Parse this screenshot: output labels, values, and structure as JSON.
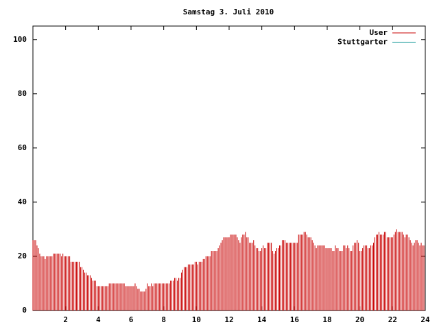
{
  "chart_data": {
    "type": "impulses",
    "title": "Samstag 3. Juli 2010",
    "xlim": [
      0,
      24
    ],
    "xticks": [
      2,
      4,
      6,
      8,
      10,
      12,
      14,
      16,
      18,
      20,
      22,
      24
    ],
    "ylim": [
      0,
      105
    ],
    "yticks": [
      0,
      20,
      40,
      60,
      80,
      100
    ],
    "legend": "top-right",
    "x": [
      0,
      0.083,
      0.167,
      0.25,
      0.333,
      0.417,
      0.5,
      0.583,
      0.667,
      0.75,
      0.833,
      0.917,
      1,
      1.083,
      1.167,
      1.25,
      1.333,
      1.417,
      1.5,
      1.583,
      1.667,
      1.75,
      1.833,
      1.917,
      2,
      2.083,
      2.167,
      2.25,
      2.333,
      2.417,
      2.5,
      2.583,
      2.667,
      2.75,
      2.833,
      2.917,
      3,
      3.083,
      3.167,
      3.25,
      3.333,
      3.417,
      3.5,
      3.583,
      3.667,
      3.75,
      3.833,
      3.917,
      4,
      4.083,
      4.167,
      4.25,
      4.333,
      4.417,
      4.5,
      4.583,
      4.667,
      4.75,
      4.833,
      4.917,
      5,
      5.083,
      5.167,
      5.25,
      5.333,
      5.417,
      5.5,
      5.583,
      5.667,
      5.75,
      5.833,
      5.917,
      6,
      6.083,
      6.167,
      6.25,
      6.333,
      6.417,
      6.5,
      6.583,
      6.667,
      6.75,
      6.833,
      6.917,
      7,
      7.083,
      7.167,
      7.25,
      7.333,
      7.417,
      7.5,
      7.583,
      7.667,
      7.75,
      7.833,
      7.917,
      8,
      8.083,
      8.167,
      8.25,
      8.333,
      8.417,
      8.5,
      8.583,
      8.667,
      8.75,
      8.833,
      8.917,
      9,
      9.083,
      9.167,
      9.25,
      9.333,
      9.417,
      9.5,
      9.583,
      9.667,
      9.75,
      9.833,
      9.917,
      10,
      10.083,
      10.167,
      10.25,
      10.333,
      10.417,
      10.5,
      10.583,
      10.667,
      10.75,
      10.833,
      10.917,
      11,
      11.083,
      11.167,
      11.25,
      11.333,
      11.417,
      11.5,
      11.583,
      11.667,
      11.75,
      11.833,
      11.917,
      12,
      12.083,
      12.167,
      12.25,
      12.333,
      12.417,
      12.5,
      12.583,
      12.667,
      12.75,
      12.833,
      12.917,
      13,
      13.083,
      13.167,
      13.25,
      13.333,
      13.417,
      13.5,
      13.583,
      13.667,
      13.75,
      13.833,
      13.917,
      14,
      14.083,
      14.167,
      14.25,
      14.333,
      14.417,
      14.5,
      14.583,
      14.667,
      14.75,
      14.833,
      14.917,
      15,
      15.083,
      15.167,
      15.25,
      15.333,
      15.417,
      15.5,
      15.583,
      15.667,
      15.75,
      15.833,
      15.917,
      16,
      16.083,
      16.167,
      16.25,
      16.333,
      16.417,
      16.5,
      16.583,
      16.667,
      16.75,
      16.833,
      16.917,
      17,
      17.083,
      17.167,
      17.25,
      17.333,
      17.417,
      17.5,
      17.583,
      17.667,
      17.75,
      17.833,
      17.917,
      18,
      18.083,
      18.167,
      18.25,
      18.333,
      18.417,
      18.5,
      18.583,
      18.667,
      18.75,
      18.833,
      18.917,
      19,
      19.083,
      19.167,
      19.25,
      19.333,
      19.417,
      19.5,
      19.583,
      19.667,
      19.75,
      19.833,
      19.917,
      20,
      20.083,
      20.167,
      20.25,
      20.333,
      20.417,
      20.5,
      20.583,
      20.667,
      20.75,
      20.833,
      20.917,
      21,
      21.083,
      21.167,
      21.25,
      21.333,
      21.417,
      21.5,
      21.583,
      21.667,
      21.75,
      21.833,
      21.917,
      22,
      22.083,
      22.167,
      22.25,
      22.333,
      22.417,
      22.5,
      22.583,
      22.667,
      22.75,
      22.833,
      22.917,
      23,
      23.083,
      23.167,
      23.25,
      23.333,
      23.417,
      23.5,
      23.583,
      23.667,
      23.75,
      23.833,
      23.917
    ],
    "series": [
      {
        "name": "User",
        "color": "#c80000",
        "values": [
          26,
          26,
          26,
          24,
          23,
          21,
          20,
          20,
          20,
          19,
          20,
          20,
          20,
          20,
          20,
          21,
          21,
          21,
          21,
          21,
          21,
          20,
          21,
          20,
          20,
          20,
          20,
          20,
          18,
          18,
          18,
          18,
          18,
          18,
          18,
          16,
          16,
          15,
          14,
          14,
          13,
          13,
          13,
          12,
          11,
          11,
          11,
          9,
          9,
          9,
          9,
          9,
          9,
          9,
          9,
          9,
          10,
          10,
          10,
          10,
          10,
          10,
          10,
          10,
          10,
          10,
          10,
          10,
          9,
          9,
          9,
          9,
          9,
          9,
          9,
          10,
          9,
          8,
          8,
          7,
          7,
          7,
          7,
          8,
          10,
          9,
          9,
          10,
          9,
          10,
          10,
          10,
          10,
          10,
          10,
          10,
          10,
          10,
          10,
          10,
          10,
          11,
          11,
          11,
          12,
          12,
          11,
          12,
          12,
          14,
          15,
          16,
          16,
          16,
          17,
          17,
          17,
          17,
          17,
          18,
          18,
          17,
          18,
          18,
          18,
          19,
          19,
          20,
          20,
          20,
          20,
          22,
          22,
          22,
          22,
          22,
          23,
          24,
          25,
          26,
          27,
          27,
          27,
          27,
          27,
          28,
          28,
          28,
          28,
          28,
          27,
          26,
          25,
          27,
          28,
          28,
          29,
          27,
          27,
          25,
          25,
          25,
          26,
          24,
          23,
          23,
          22,
          22,
          23,
          24,
          23,
          23,
          25,
          25,
          25,
          25,
          22,
          21,
          22,
          23,
          23,
          24,
          24,
          26,
          26,
          26,
          25,
          25,
          25,
          25,
          25,
          25,
          25,
          25,
          25,
          28,
          28,
          28,
          28,
          29,
          29,
          28,
          27,
          27,
          27,
          26,
          25,
          24,
          23,
          24,
          24,
          24,
          24,
          24,
          24,
          23,
          23,
          23,
          23,
          23,
          22,
          22,
          24,
          23,
          23,
          22,
          22,
          22,
          24,
          24,
          23,
          24,
          23,
          22,
          22,
          24,
          25,
          25,
          26,
          25,
          22,
          22,
          23,
          24,
          24,
          24,
          23,
          23,
          24,
          24,
          25,
          27,
          28,
          28,
          29,
          28,
          28,
          28,
          29,
          29,
          27,
          27,
          27,
          27,
          27,
          28,
          29,
          30,
          29,
          29,
          29,
          29,
          28,
          27,
          28,
          28,
          27,
          26,
          25,
          24,
          25,
          26,
          26,
          25,
          24,
          25,
          24,
          24
        ]
      },
      {
        "name": "Stuttgarter",
        "color": "#009090",
        "values": [
          null,
          null,
          null,
          null,
          null,
          null,
          null,
          null,
          null,
          null,
          null,
          null,
          null,
          null,
          null,
          null,
          null,
          null,
          null,
          null,
          null,
          null,
          null,
          null,
          null,
          null,
          null,
          null,
          null,
          null,
          null,
          null,
          null,
          null,
          null,
          null,
          null,
          null,
          null,
          null,
          null,
          null,
          null,
          null,
          null,
          null,
          null,
          null,
          null,
          null,
          null,
          null,
          null,
          null,
          null,
          null,
          null,
          null,
          null,
          null,
          null,
          null,
          null,
          null,
          null,
          null,
          null,
          null,
          null,
          null,
          null,
          null,
          null,
          null,
          null,
          null,
          null,
          null,
          null,
          null,
          null,
          null,
          null,
          null,
          null,
          null,
          null,
          null,
          null,
          null,
          null,
          null,
          null,
          null,
          null,
          null,
          null,
          null,
          null,
          null,
          null,
          null,
          null,
          null,
          null,
          null,
          null,
          null,
          null,
          null,
          null,
          null,
          null,
          null,
          null,
          null,
          null,
          null,
          null,
          null,
          null,
          null,
          null,
          null,
          null,
          null,
          null,
          null,
          null,
          null,
          null,
          null,
          null,
          null,
          null,
          null,
          null,
          null,
          null,
          null,
          null,
          null,
          null,
          null,
          null,
          null,
          null,
          null,
          null,
          null,
          null,
          null,
          null,
          null,
          null,
          null,
          null,
          null,
          null,
          null,
          null,
          null,
          null,
          null,
          null,
          null,
          null,
          null,
          null,
          null,
          null,
          null,
          null,
          null,
          null,
          null,
          null,
          null,
          null,
          null,
          null,
          null,
          null,
          null,
          null,
          null,
          null,
          null,
          null,
          null,
          null,
          null,
          null,
          null,
          null,
          null,
          null,
          null,
          null,
          null,
          null,
          null,
          null,
          null,
          null,
          null,
          null,
          null,
          null,
          null,
          null,
          null,
          null,
          null,
          null,
          null,
          null,
          null,
          null,
          null,
          null,
          null,
          null,
          null,
          null,
          null,
          null,
          null,
          null,
          null,
          null,
          null,
          null,
          null,
          null,
          null,
          null,
          null,
          null,
          null,
          null,
          null,
          null,
          null,
          null,
          null,
          null,
          null,
          null,
          null,
          null,
          null,
          null,
          null,
          null,
          null,
          null,
          null,
          null,
          null,
          null,
          null,
          null,
          null,
          null,
          null,
          null,
          null,
          null,
          null,
          null,
          null,
          null,
          null,
          null,
          null,
          null,
          null,
          null,
          null,
          null,
          null,
          null,
          null,
          null,
          null,
          null,
          null
        ]
      }
    ]
  }
}
